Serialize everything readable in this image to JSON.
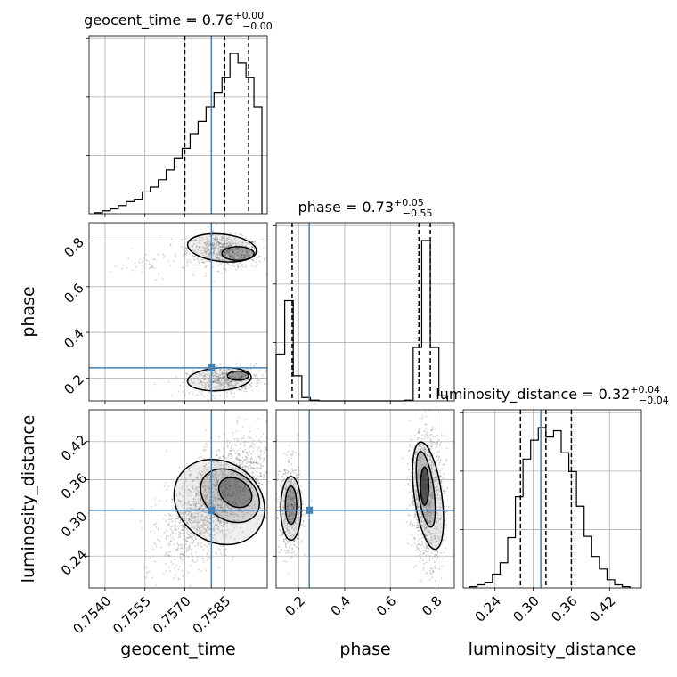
{
  "chart_data": {
    "type": "corner",
    "parameters": [
      "geocent_time",
      "phase",
      "luminosity_distance"
    ],
    "truths": {
      "geocent_time": 0.758,
      "phase": 0.245,
      "luminosity_distance": 0.312
    },
    "truth_color": "#4682b4",
    "contour_color": "#000000",
    "histograms": [
      {
        "parameter": "geocent_time",
        "title_label": "geocent_time",
        "median": "0.76",
        "plus": "+0.00",
        "minus": "−0.00",
        "quantiles": [
          0.757,
          0.7585,
          0.7594
        ],
        "bin_edges": [
          0.7536,
          0.7539,
          0.7542,
          0.7545,
          0.7548,
          0.7551,
          0.7554,
          0.7557,
          0.756,
          0.7563,
          0.7566,
          0.7569,
          0.7572,
          0.7575,
          0.7578,
          0.7581,
          0.7584,
          0.7587,
          0.759,
          0.7593,
          0.7596,
          0.7599
        ],
        "counts": [
          2,
          6,
          10,
          17,
          25,
          30,
          45,
          55,
          70,
          90,
          115,
          135,
          165,
          190,
          220,
          250,
          280,
          330,
          310,
          280,
          220
        ]
      },
      {
        "parameter": "phase",
        "title_label": "phase",
        "median": "0.73",
        "plus": "+0.05",
        "minus": "−0.55",
        "quantiles": [
          0.17,
          0.725,
          0.775
        ],
        "bin_edges": [
          0.1,
          0.1375,
          0.175,
          0.2125,
          0.25,
          0.2875,
          0.325,
          0.3625,
          0.4,
          0.4375,
          0.475,
          0.5125,
          0.55,
          0.5875,
          0.625,
          0.6625,
          0.7,
          0.7375,
          0.775,
          0.8125,
          0.85
        ],
        "counts": [
          140,
          300,
          75,
          10,
          2,
          0,
          0,
          0,
          0,
          0,
          0,
          0,
          0,
          0,
          0,
          2,
          160,
          480,
          160,
          15
        ]
      },
      {
        "parameter": "luminosity_distance",
        "title_label": "luminosity_distance",
        "median": "0.32",
        "plus": "+0.04",
        "minus": "−0.04",
        "quantiles": [
          0.28,
          0.32,
          0.36
        ],
        "bin_edges": [
          0.2,
          0.212,
          0.224,
          0.236,
          0.248,
          0.26,
          0.272,
          0.284,
          0.296,
          0.308,
          0.32,
          0.332,
          0.344,
          0.356,
          0.368,
          0.38,
          0.392,
          0.404,
          0.416,
          0.428,
          0.44,
          0.452
        ],
        "counts": [
          2,
          5,
          9,
          22,
          40,
          80,
          145,
          205,
          235,
          255,
          240,
          250,
          215,
          185,
          130,
          82,
          50,
          30,
          13,
          5,
          2
        ]
      }
    ],
    "axes": {
      "geocent_time": {
        "range": [
          0.7534,
          0.7601
        ],
        "ticks": [
          0.754,
          0.7555,
          0.757,
          0.7585
        ],
        "tick_labels": [
          "0.7540",
          "0.7555",
          "0.7570",
          "0.7585"
        ],
        "label": "geocent_time"
      },
      "phase": {
        "range": [
          0.1,
          0.88
        ],
        "ticks": [
          0.2,
          0.4,
          0.6,
          0.8
        ],
        "tick_labels": [
          "0.2",
          "0.4",
          "0.6",
          "0.8"
        ],
        "label": "phase"
      },
      "luminosity_distance": {
        "range": [
          0.19,
          0.47
        ],
        "ticks": [
          0.24,
          0.3,
          0.36,
          0.42
        ],
        "tick_labels": [
          "0.24",
          "0.30",
          "0.36",
          "0.42"
        ],
        "label": "luminosity_distance"
      }
    },
    "grid": true
  }
}
